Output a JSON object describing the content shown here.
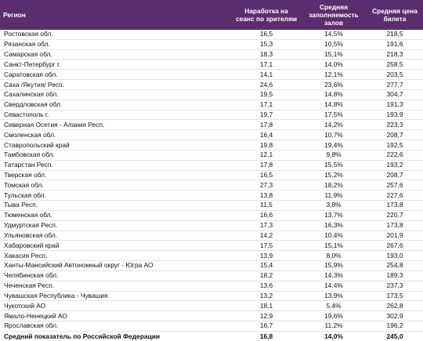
{
  "header": {
    "region": "Регион",
    "col2": "Наработка на сеанс по зрителям",
    "col3": "Средняя заполняемость залов",
    "col4": "Средняя цена билета"
  },
  "rows": [
    {
      "region": "Ростовская обл.",
      "v1": "16,5",
      "v2": "14,5%",
      "v3": "218,5"
    },
    {
      "region": "Рязанская обл.",
      "v1": "15,3",
      "v2": "10,5%",
      "v3": "191,6"
    },
    {
      "region": "Самарская обл.",
      "v1": "18,3",
      "v2": "15,1%",
      "v3": "218,3"
    },
    {
      "region": "Санкт-Петербург г.",
      "v1": "17,1",
      "v2": "14,0%",
      "v3": "258,5"
    },
    {
      "region": "Саратовская обл.",
      "v1": "14,1",
      "v2": "12,1%",
      "v3": "203,5"
    },
    {
      "region": "Саха /Якутия/ Респ.",
      "v1": "24,6",
      "v2": "23,6%",
      "v3": "277,7"
    },
    {
      "region": "Сахалинская обл.",
      "v1": "19,5",
      "v2": "14,8%",
      "v3": "304,7"
    },
    {
      "region": "Свердловская обл.",
      "v1": "17,1",
      "v2": "14,8%",
      "v3": "191,3"
    },
    {
      "region": "Севастополь г.",
      "v1": "19,7",
      "v2": "17,5%",
      "v3": "193,9"
    },
    {
      "region": "Северная Осетия - Алания Респ.",
      "v1": "17,8",
      "v2": "14,2%",
      "v3": "223,3"
    },
    {
      "region": "Смоленская обл.",
      "v1": "16,4",
      "v2": "10,7%",
      "v3": "208,7"
    },
    {
      "region": "Ставропольский край",
      "v1": "19,8",
      "v2": "19,4%",
      "v3": "192,5"
    },
    {
      "region": "Тамбовская обл.",
      "v1": "12,1",
      "v2": "9,8%",
      "v3": "222,6"
    },
    {
      "region": "Татарстан Респ.",
      "v1": "17,8",
      "v2": "15,5%",
      "v3": "193,2"
    },
    {
      "region": "Тверская обл.",
      "v1": "16,5",
      "v2": "15,2%",
      "v3": "208,7"
    },
    {
      "region": "Томская обл.",
      "v1": "27,3",
      "v2": "18,2%",
      "v3": "257,6"
    },
    {
      "region": "Тульская обл.",
      "v1": "13,8",
      "v2": "11,9%",
      "v3": "227,6"
    },
    {
      "region": "Тыва Респ.",
      "v1": "11,5",
      "v2": "3,8%",
      "v3": "173,8"
    },
    {
      "region": "Тюменская обл.",
      "v1": "16,6",
      "v2": "13,7%",
      "v3": "220,7"
    },
    {
      "region": "Удмуртская Респ.",
      "v1": "17,3",
      "v2": "16,3%",
      "v3": "173,8"
    },
    {
      "region": "Ульяновская обл.",
      "v1": "14,2",
      "v2": "10,4%",
      "v3": "201,9"
    },
    {
      "region": "Хабаровский край",
      "v1": "17,5",
      "v2": "15,1%",
      "v3": "267,6"
    },
    {
      "region": "Хакасия Респ.",
      "v1": "13,9",
      "v2": "8,0%",
      "v3": "193,0"
    },
    {
      "region": "Ханты-Мансийский Автономный округ - Югра АО",
      "v1": "15,4",
      "v2": "15,9%",
      "v3": "254,8"
    },
    {
      "region": "Челябинская обл.",
      "v1": "18,2",
      "v2": "14,3%",
      "v3": "189,3"
    },
    {
      "region": "Чеченская Респ.",
      "v1": "13,6",
      "v2": "14,4%",
      "v3": "237,3"
    },
    {
      "region": "Чувашская Республика - Чувашия",
      "v1": "13,2",
      "v2": "13,9%",
      "v3": "173,5"
    },
    {
      "region": "Чукотский АО",
      "v1": "18,1",
      "v2": "5,4%",
      "v3": "262,8"
    },
    {
      "region": "Ямало-Ненецкий АО",
      "v1": "12,9",
      "v2": "19,6%",
      "v3": "302,9"
    },
    {
      "region": "Ярославская обл.",
      "v1": "16,7",
      "v2": "11,2%",
      "v3": "196,2"
    }
  ],
  "footer": {
    "region": "Средний показатель по Российской Федерации",
    "v1": "16,8",
    "v2": "14,0%",
    "v3": "245,0"
  }
}
